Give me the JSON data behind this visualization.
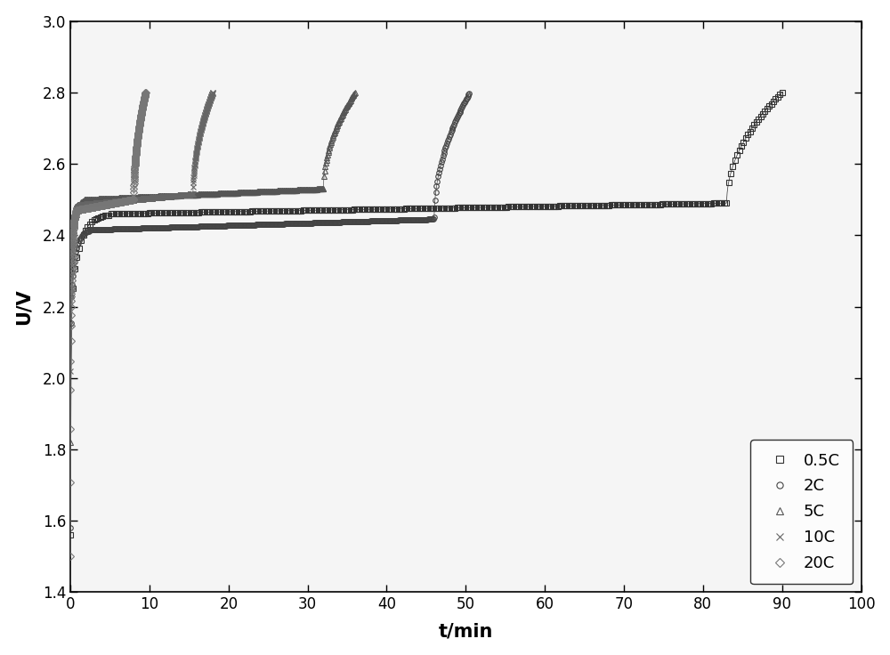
{
  "title": "",
  "xlabel": "t/min",
  "ylabel": "U/V",
  "xlim": [
    0,
    100
  ],
  "ylim": [
    1.4,
    3.0
  ],
  "xticks": [
    0,
    10,
    20,
    30,
    40,
    50,
    60,
    70,
    80,
    90,
    100
  ],
  "yticks": [
    1.4,
    1.6,
    1.8,
    2.0,
    2.2,
    2.4,
    2.6,
    2.8,
    3.0
  ],
  "background_color": "#ffffff",
  "series": [
    {
      "label": "0.5C",
      "marker": "s",
      "end_time": 90.0,
      "start_voltage": 1.56,
      "plateau_voltage": 2.3,
      "plateau_voltage2": 2.46,
      "cutoff_voltage": 2.8,
      "t_plateau1": 0.5,
      "t_plateau2": 5.0,
      "t_end_plateau": 83.0,
      "marker_every": 3
    },
    {
      "label": "2C",
      "marker": "o",
      "end_time": 50.5,
      "start_voltage": 1.58,
      "plateau_voltage": 2.285,
      "plateau_voltage2": 2.415,
      "cutoff_voltage": 2.8,
      "t_plateau1": 0.3,
      "t_plateau2": 2.5,
      "t_end_plateau": 46.0,
      "marker_every": 2
    },
    {
      "label": "5C",
      "marker": "^",
      "end_time": 36.0,
      "start_voltage": 1.82,
      "plateau_voltage": 2.36,
      "plateau_voltage2": 2.5,
      "cutoff_voltage": 2.8,
      "t_plateau1": 0.25,
      "t_plateau2": 1.8,
      "t_end_plateau": 32.0,
      "marker_every": 2
    },
    {
      "label": "10C",
      "marker": "x",
      "end_time": 18.0,
      "start_voltage": 2.02,
      "plateau_voltage": 2.38,
      "plateau_voltage2": 2.485,
      "cutoff_voltage": 2.8,
      "t_plateau1": 0.2,
      "t_plateau2": 1.2,
      "t_end_plateau": 15.5,
      "marker_every": 1
    },
    {
      "label": "20C",
      "marker": "D",
      "end_time": 9.5,
      "start_voltage": 1.5,
      "plateau_voltage": 2.26,
      "plateau_voltage2": 2.47,
      "cutoff_voltage": 2.8,
      "t_plateau1": 0.15,
      "t_plateau2": 0.8,
      "t_end_plateau": 8.0,
      "marker_every": 1
    }
  ]
}
